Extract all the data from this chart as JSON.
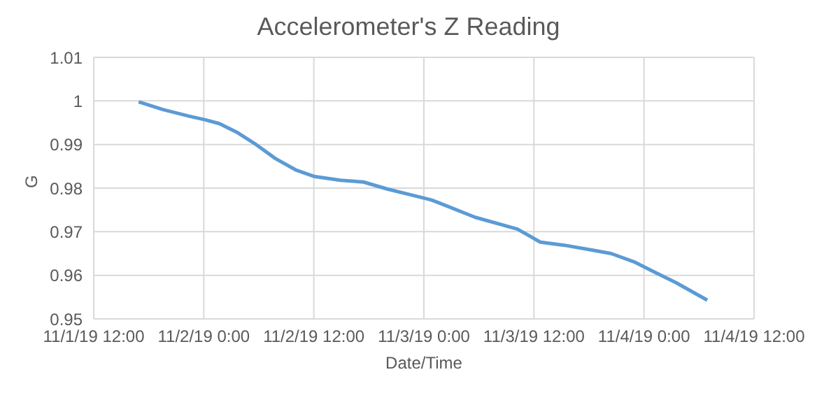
{
  "chart_data": {
    "type": "line",
    "title": "Accelerometer's Z Reading",
    "xlabel": "Date/Time",
    "ylabel": "G",
    "x": [
      "--11-01T16:54",
      "--11-01T19:36",
      "--11-01T22:24",
      "--11-02T00:06",
      "--11-02T01:42",
      "--11-02T03:42",
      "--11-02T05:42",
      "--11-02T07:48",
      "--11-02T10:06",
      "--11-02T12:00",
      "--11-02T14:54",
      "--11-02T17:24",
      "--11-02T20:00",
      "--11-02T22:30",
      "--11-03T00:48",
      "--11-03T01:48",
      "--11-03T05:36",
      "--11-03T10:12",
      "--11-03T12:42",
      "--11-03T15:18",
      "--11-03T18:18",
      "--11-03T20:24",
      "--11-03T22:54",
      "--11-04T00:54",
      "--11-04T03:30",
      "--11-04T06:54"
    ],
    "series": [
      {
        "color": "#5b9bd5",
        "values": [
          0.9998,
          0.998,
          0.9965,
          0.9957,
          0.9948,
          0.9927,
          0.99,
          0.9868,
          0.9841,
          0.9827,
          0.9818,
          0.9814,
          0.9798,
          0.9785,
          0.9773,
          0.9765,
          0.9733,
          0.9706,
          0.9676,
          0.9669,
          0.9658,
          0.965,
          0.9631,
          0.961,
          0.9583,
          0.9543
        ]
      }
    ],
    "xlim": [
      "--11-01T12:00",
      "--11-04T12:00"
    ],
    "xticks": [
      {
        "value": "--11-01T12:00",
        "label": "11/1/19 12:00"
      },
      {
        "value": "--11-02T00:00",
        "label": "11/2/19 0:00"
      },
      {
        "value": "--11-02T12:00",
        "label": "11/2/19 12:00"
      },
      {
        "value": "--11-03T00:00",
        "label": "11/3/19 0:00"
      },
      {
        "value": "--11-03T12:00",
        "label": "11/3/19 12:00"
      },
      {
        "value": "--11-04T00:00",
        "label": "11/4/19 0:00"
      },
      {
        "value": "--11-04T12:00",
        "label": "11/4/19 12:00"
      }
    ],
    "ylim": [
      0.95,
      1.01
    ],
    "yticks": [
      0.95,
      0.96,
      0.97,
      0.98,
      0.99,
      1,
      1.01
    ],
    "grid": true,
    "legend": false,
    "marker": "none",
    "line_style": "solid"
  }
}
